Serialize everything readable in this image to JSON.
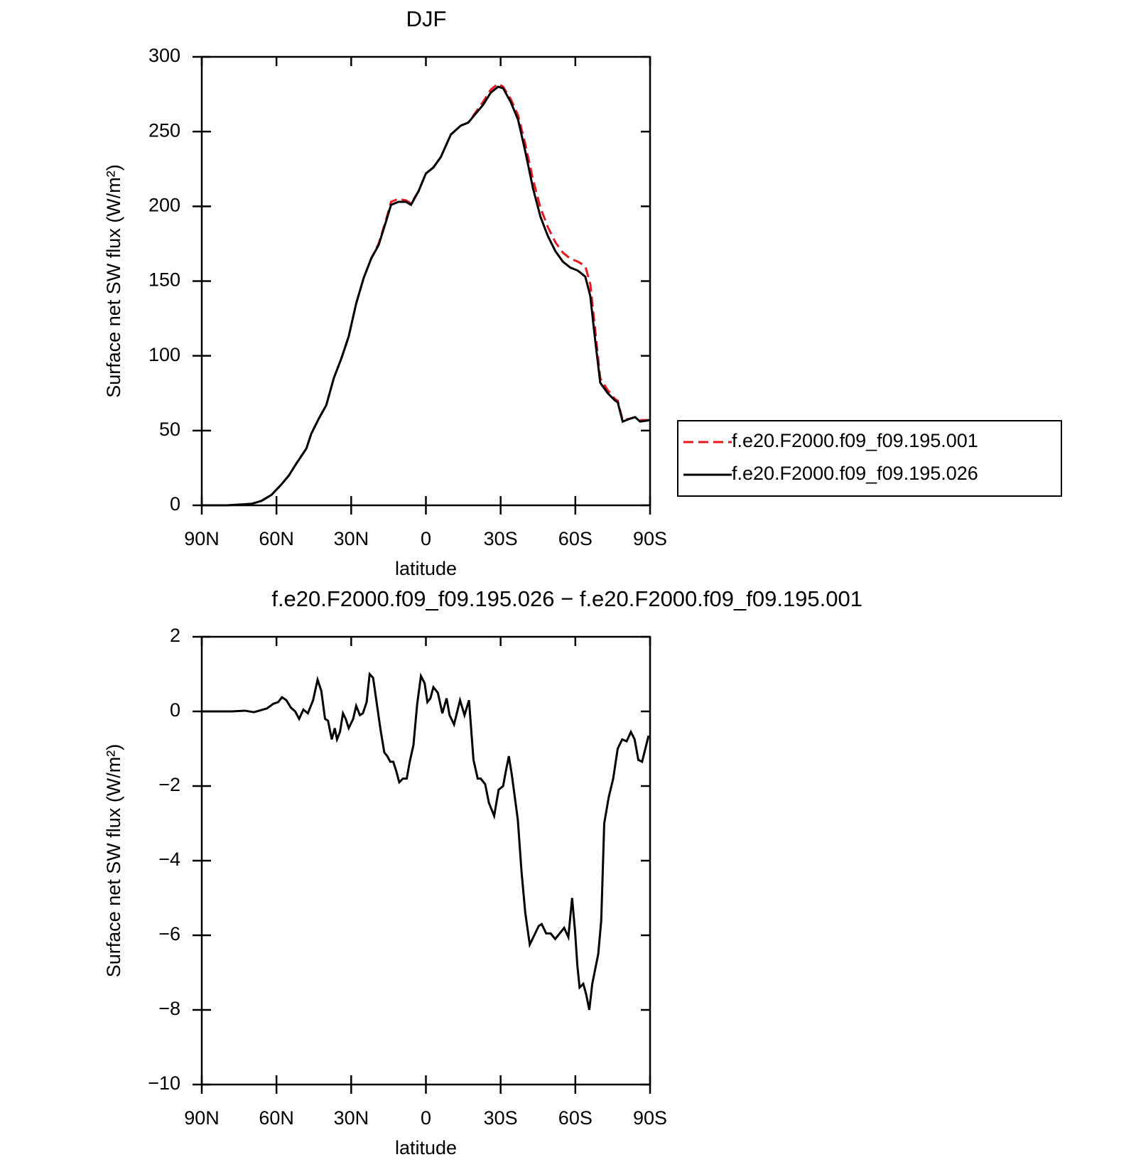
{
  "chart_data": [
    {
      "type": "line",
      "title": "DJF",
      "xlabel": "latitude",
      "ylabel": "Surface net SW flux (W/m²)",
      "x": [
        90,
        80,
        75,
        70,
        66,
        62,
        58,
        55,
        52,
        48,
        46,
        43,
        40,
        37,
        34,
        31,
        28,
        25,
        22,
        19,
        16,
        14,
        11,
        8,
        6,
        3,
        0,
        -3,
        -6,
        -10,
        -14,
        -17,
        -20,
        -23,
        -26,
        -29,
        -31,
        -34,
        -37,
        -40,
        -43,
        -46,
        -49,
        -52,
        -55,
        -58,
        -61,
        -64,
        -66,
        -68,
        -70,
        -73,
        -76,
        -77,
        -79,
        -82,
        -84,
        -86,
        -90
      ],
      "series": [
        {
          "name": "f.e20.F2000.f09_f09.195.001",
          "color": "#e8191e",
          "linestyle": "dashed",
          "values": [
            0,
            0,
            0.5,
            1,
            3,
            7,
            14,
            20,
            28,
            38,
            48,
            58,
            67,
            85,
            98,
            113,
            135,
            152,
            165,
            175,
            191,
            203,
            205,
            204,
            202,
            210,
            222,
            226,
            233,
            248,
            254,
            256,
            263,
            270,
            278,
            282,
            280,
            272,
            261,
            241,
            218,
            199,
            186,
            176,
            169,
            165,
            163,
            160,
            148,
            117,
            85,
            77,
            71,
            70,
            57,
            58,
            59,
            57,
            57
          ]
        },
        {
          "name": "f.e20.F2000.f09_f09.195.026",
          "color": "#000000",
          "linestyle": "solid",
          "values": [
            0,
            0,
            0.5,
            1,
            3,
            7,
            14,
            20,
            28,
            38,
            48,
            58,
            67,
            85,
            98,
            113,
            135,
            152,
            165,
            174,
            190,
            201,
            203,
            203,
            201,
            210,
            222,
            226,
            233,
            248,
            254,
            256,
            262,
            268,
            276,
            280,
            279,
            270,
            258,
            236,
            212,
            193,
            180,
            170,
            163,
            159,
            157,
            153,
            140,
            110,
            82,
            75,
            70,
            69,
            56,
            58,
            59,
            56,
            57
          ]
        }
      ],
      "xlim": [
        90,
        -90
      ],
      "xticks": [
        {
          "value": 90,
          "label": "90N"
        },
        {
          "value": 60,
          "label": "60N"
        },
        {
          "value": 30,
          "label": "30N"
        },
        0,
        {
          "value": -30,
          "label": "30S"
        },
        {
          "value": -60,
          "label": "60S"
        },
        {
          "value": -90,
          "label": "90S"
        }
      ],
      "ylim": [
        0,
        300
      ],
      "yticks": [
        0,
        50,
        100,
        150,
        200,
        250,
        300
      ],
      "legend": "right"
    },
    {
      "type": "line",
      "title": "f.e20.F2000.f09_f09.195.026 − f.e20.F2000.f09_f09.195.001",
      "xlabel": "latitude",
      "ylabel": "Surface net SW flux (W/m²)",
      "x": [
        90,
        78,
        72.7,
        69.1,
        63.8,
        61.4,
        59.3,
        57.8,
        56,
        54.2,
        52.5,
        50.9,
        49.2,
        47.4,
        45.3,
        43.5,
        42,
        40.5,
        39.3,
        37.8,
        36.6,
        35.7,
        34.5,
        33.3,
        32.2,
        31,
        29.2,
        28,
        26.5,
        25.3,
        23.8,
        22.6,
        21.2,
        19.7,
        18.2,
        16.7,
        15.5,
        14.3,
        13.1,
        11.9,
        10.7,
        9.2,
        7.7,
        6.5,
        5,
        3.5,
        2,
        0.5,
        -0.6,
        -1.8,
        -3,
        -4.8,
        -6.6,
        -8.3,
        -9.5,
        -11.3,
        -13.7,
        -15.5,
        -17.3,
        -19.1,
        -20.8,
        -22,
        -23.8,
        -25.3,
        -27.4,
        -29.2,
        -31,
        -32.1,
        -33.3,
        -34.5,
        -35.7,
        -36.9,
        -38.4,
        -39.9,
        -41.7,
        -43.5,
        -45.3,
        -46.5,
        -48.3,
        -50.1,
        -51.9,
        -53.7,
        -55.5,
        -57.2,
        -58.7,
        -59.9,
        -60.8,
        -61.7,
        -63.2,
        -64.4,
        -65.6,
        -66.8,
        -69.2,
        -70.4,
        -71.6,
        -73.4,
        -75.2,
        -77,
        -78.8,
        -80.6,
        -82.3,
        -83.8,
        -85.3,
        -86.8,
        -88.3,
        -89.4
      ],
      "series": [
        {
          "color": "#000000",
          "linestyle": "solid",
          "values": [
            0,
            0,
            0.02,
            -0.02,
            0.08,
            0.2,
            0.25,
            0.38,
            0.3,
            0.1,
            0,
            -0.2,
            0.05,
            -0.05,
            0.3,
            0.85,
            0.55,
            -0.2,
            -0.25,
            -0.75,
            -0.45,
            -0.75,
            -0.55,
            -0.05,
            -0.2,
            -0.45,
            -0.2,
            0.15,
            -0.1,
            -0.05,
            0.25,
            1,
            0.9,
            0.2,
            -0.5,
            -1.1,
            -1.2,
            -1.35,
            -1.35,
            -1.6,
            -1.9,
            -1.8,
            -1.8,
            -1.35,
            -0.9,
            0.2,
            0.95,
            0.75,
            0.25,
            0.35,
            0.65,
            0.5,
            -0.05,
            0.35,
            -0.1,
            -0.35,
            0.3,
            -0.1,
            0.3,
            -1.3,
            -1.8,
            -1.8,
            -1.95,
            -2.45,
            -2.8,
            -2.1,
            -2,
            -1.6,
            -1.2,
            -1.7,
            -2.3,
            -2.9,
            -4.3,
            -5.4,
            -6.25,
            -6,
            -5.75,
            -5.7,
            -5.95,
            -5.95,
            -6.1,
            -5.95,
            -5.8,
            -6.05,
            -5,
            -5.9,
            -6.8,
            -7.4,
            -7.3,
            -7.6,
            -8,
            -7.3,
            -6.5,
            -5.6,
            -3,
            -2.3,
            -1.8,
            -1,
            -0.75,
            -0.8,
            -0.55,
            -0.75,
            -1.3,
            -1.35,
            -0.95,
            -0.65
          ]
        }
      ],
      "xlim": [
        90,
        -90
      ],
      "xticks": [
        {
          "value": 90,
          "label": "90N"
        },
        {
          "value": 60,
          "label": "60N"
        },
        {
          "value": 30,
          "label": "30N"
        },
        0,
        {
          "value": -30,
          "label": "30S"
        },
        {
          "value": -60,
          "label": "60S"
        },
        {
          "value": -90,
          "label": "90S"
        }
      ],
      "ylim": [
        -10,
        2
      ],
      "yticks": [
        {
          "value": -10,
          "label": "−10"
        },
        {
          "value": -8,
          "label": "−8"
        },
        {
          "value": -6,
          "label": "−6"
        },
        {
          "value": -4,
          "label": "−4"
        },
        {
          "value": -2,
          "label": "−2"
        },
        0,
        2
      ]
    }
  ]
}
